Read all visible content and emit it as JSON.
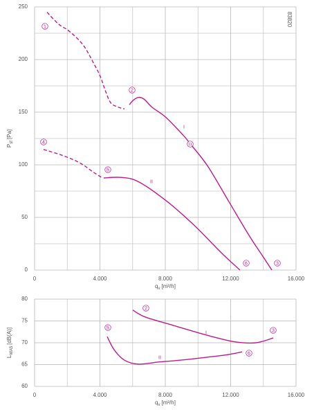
{
  "chart_data": [
    {
      "type": "line",
      "code_label": "83820",
      "xlabel": {
        "text": "q",
        "sub": "v",
        "unit": "[m³/h]"
      },
      "ylabel": {
        "text": "P",
        "sub": "sf",
        "unit": "[Pa]"
      },
      "xlim": [
        0,
        16000
      ],
      "xticks": [
        0,
        {
          "value": 4000,
          "label": "4.000"
        },
        {
          "value": 8000,
          "label": "8.000"
        },
        {
          "value": 12000,
          "label": "12.000"
        },
        {
          "value": 16000,
          "label": "16.000"
        }
      ],
      "xgrid": [
        2000,
        6000,
        10000,
        14000
      ],
      "ylim": [
        0,
        250
      ],
      "yticks": [
        0,
        50,
        100,
        150,
        200,
        250
      ],
      "ygrid": [
        25,
        75,
        125,
        175,
        225
      ],
      "color": "#c2188b",
      "series": [
        {
          "dashed": true,
          "x": [
            762,
            1480,
            2117,
            2963,
            3598,
            4021,
            4318,
            4656,
            5080,
            5503
          ],
          "values": [
            245,
            233.5,
            227,
            214,
            197,
            184,
            171,
            159,
            155,
            153
          ]
        },
        {
          "dashed": false,
          "x": [
            5800,
            6011,
            6350,
            6688,
            7196,
            8043,
            9101,
            9525,
            10583,
            11853,
            13123,
            13970,
            14520
          ],
          "values": [
            157,
            161,
            164,
            162.5,
            154.6,
            145,
            128,
            120,
            99,
            66,
            33,
            13,
            0
          ]
        },
        {
          "dashed": true,
          "x": [
            550,
            1693,
            2752,
            3598,
            4148
          ],
          "values": [
            114.5,
            109,
            102,
            93,
            87.5
          ]
        },
        {
          "dashed": false,
          "x": [
            4233,
            5292,
            6350,
            8043,
            9736,
            11430,
            12572
          ],
          "values": [
            87.5,
            88,
            84,
            66,
            43,
            16.4,
            0
          ]
        }
      ],
      "annotations": [
        {
          "text": "1",
          "circled": true
        },
        {
          "text": "2",
          "circled": true
        },
        {
          "text": "3",
          "circled": true
        },
        {
          "text": "4",
          "circled": true
        },
        {
          "text": "5",
          "circled": true
        },
        {
          "text": "6",
          "circled": true
        },
        {
          "text": "11",
          "circled": true
        },
        {
          "text": "I",
          "circled": false
        },
        {
          "text": "II",
          "circled": false
        }
      ]
    },
    {
      "type": "line",
      "xlabel": {
        "text": "q",
        "sub": "v",
        "unit": "[m³/h]"
      },
      "ylabel": {
        "text": "L",
        "sub": "WA5",
        "unit": "[dB(A)]"
      },
      "xlim": [
        0,
        16000
      ],
      "xticks": [
        0,
        {
          "value": 4000,
          "label": "4.000"
        },
        {
          "value": 8000,
          "label": "8.000"
        },
        {
          "value": 12000,
          "label": "12.000"
        },
        {
          "value": 16000,
          "label": "16.000"
        }
      ],
      "xgrid": [
        2000,
        6000,
        10000,
        14000
      ],
      "ylim": [
        60,
        80
      ],
      "yticks": [
        60,
        65,
        70,
        75,
        80
      ],
      "ygrid": [],
      "color": "#c2188b",
      "series": [
        {
          "dashed": false,
          "x": [
            6011,
            6773,
            8466,
            10583,
            12276,
            13546,
            14605
          ],
          "values": [
            77.5,
            75.9,
            74,
            71.7,
            70.2,
            70,
            71.1
          ]
        },
        {
          "dashed": false,
          "x": [
            4445,
            4868,
            5503,
            6350,
            7620,
            8890,
            10583,
            11853,
            12700
          ],
          "values": [
            71.4,
            68.4,
            66,
            65.1,
            65.6,
            66,
            66.7,
            67.3,
            67.9
          ]
        }
      ],
      "annotations": [
        {
          "text": "5",
          "circled": true
        },
        {
          "text": "2",
          "circled": true
        },
        {
          "text": "3",
          "circled": true
        },
        {
          "text": "6",
          "circled": true
        },
        {
          "text": "I",
          "circled": false
        },
        {
          "text": "II",
          "circled": false
        }
      ]
    }
  ]
}
